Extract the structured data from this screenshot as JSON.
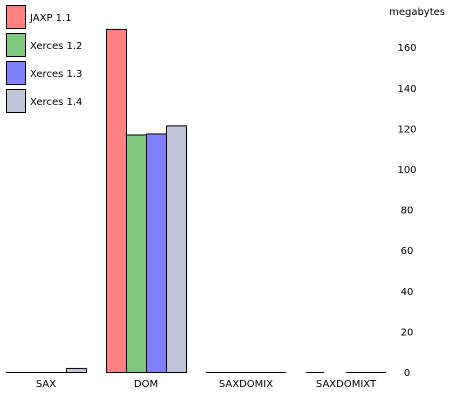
{
  "chart_data": {
    "type": "bar",
    "title": "",
    "xlabel": "",
    "ylabel": "megabytes",
    "ylim": [
      0,
      180
    ],
    "yticks": [
      0,
      20,
      40,
      60,
      80,
      100,
      120,
      140,
      160
    ],
    "grid": false,
    "legend_position": "top-left",
    "categories": [
      "SAX",
      "DOM",
      "SAXDOMIX",
      "SAXDOMIXT"
    ],
    "series": [
      {
        "name": "JAXP 1.1",
        "color": "#ff8080",
        "values": [
          0,
          169,
          0,
          null
        ]
      },
      {
        "name": "Xerces 1.2",
        "color": "#80c880",
        "values": [
          0,
          117,
          0,
          0
        ]
      },
      {
        "name": "Xerces 1.3",
        "color": "#8080ff",
        "values": [
          0,
          117.5,
          0,
          0
        ]
      },
      {
        "name": "Xerces 1.4",
        "color": "#c0c4d8",
        "values": [
          2,
          121.5,
          0,
          0
        ]
      }
    ]
  }
}
